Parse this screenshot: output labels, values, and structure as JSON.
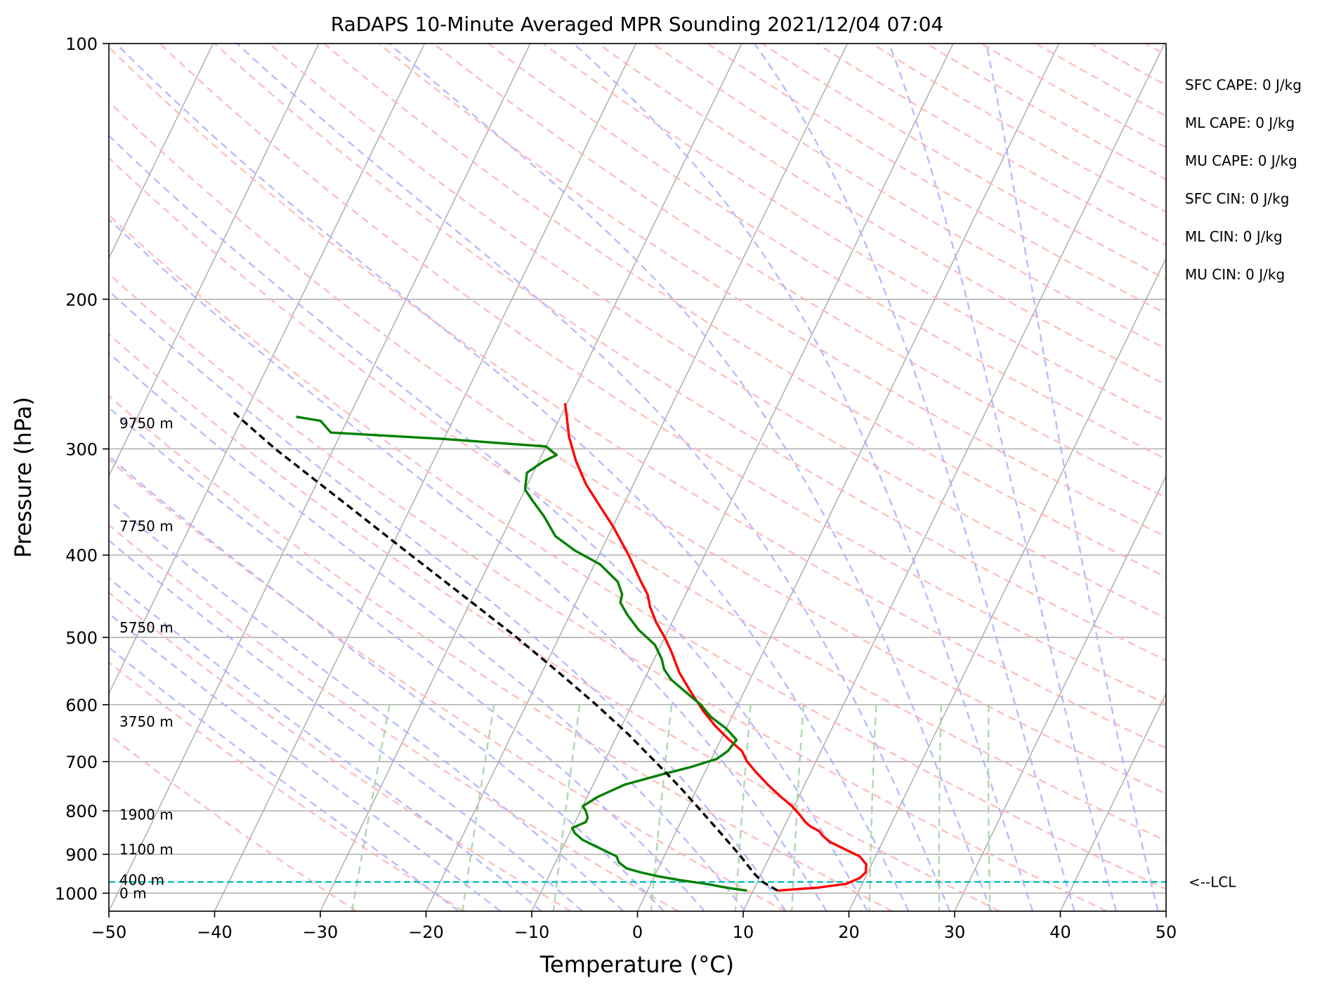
{
  "chart_data": {
    "type": "line",
    "title": "RaDAPS 10-Minute Averaged MPR Sounding 2021/12/04 07:04",
    "xlabel": "Temperature (°C)",
    "ylabel": "Pressure (hPa)",
    "xlim": [
      -50,
      50
    ],
    "ylim": [
      1050,
      100
    ],
    "y_log_scale": true,
    "skew_t": true,
    "x_ticks": [
      -50,
      -40,
      -30,
      -20,
      -10,
      0,
      10,
      20,
      30,
      40,
      50
    ],
    "x_tick_labels": [
      "−50",
      "−40",
      "−30",
      "−20",
      "−10",
      "0",
      "10",
      "20",
      "30",
      "40",
      "50"
    ],
    "y_ticks": [
      100,
      200,
      300,
      400,
      500,
      600,
      700,
      800,
      900,
      1000
    ],
    "y_tick_labels": [
      "100",
      "200",
      "300",
      "400",
      "500",
      "600",
      "700",
      "800",
      "900",
      "1000"
    ],
    "grid": true,
    "colors": {
      "temperature": "#ff0000",
      "dewpoint": "#008000",
      "parcel": "#000000",
      "lcl": "#00bfbf",
      "dry_adiabat": "#ffb3b3",
      "moist_adiabat": "#b3b3ff",
      "mixing_ratio": "#a6d4a6",
      "isotherm": "#a8a8a8"
    },
    "series": [
      {
        "key": "temperature",
        "points": [
          [
            993,
            12.3
          ],
          [
            985,
            16
          ],
          [
            975,
            18.5
          ],
          [
            960,
            19.5
          ],
          [
            945,
            19.8
          ],
          [
            925,
            19.5
          ],
          [
            905,
            18.5
          ],
          [
            890,
            17
          ],
          [
            870,
            15
          ],
          [
            855,
            14
          ],
          [
            845,
            13.5
          ],
          [
            835,
            12.5
          ],
          [
            825,
            11.8
          ],
          [
            810,
            11
          ],
          [
            790,
            9.8
          ],
          [
            770,
            8.3
          ],
          [
            745,
            6.5
          ],
          [
            720,
            4.8
          ],
          [
            700,
            3.5
          ],
          [
            680,
            2.5
          ],
          [
            660,
            0.8
          ],
          [
            635,
            -1.2
          ],
          [
            610,
            -3
          ],
          [
            580,
            -5
          ],
          [
            550,
            -7
          ],
          [
            520,
            -8.7
          ],
          [
            500,
            -10
          ],
          [
            480,
            -11.5
          ],
          [
            460,
            -12.8
          ],
          [
            445,
            -13.6
          ],
          [
            430,
            -14.8
          ],
          [
            400,
            -17.2
          ],
          [
            370,
            -20
          ],
          [
            350,
            -22.2
          ],
          [
            330,
            -24.5
          ],
          [
            310,
            -26.5
          ],
          [
            290,
            -28.3
          ],
          [
            275,
            -29.4
          ],
          [
            265,
            -30.2
          ]
        ]
      },
      {
        "key": "dewpoint",
        "points": [
          [
            993,
            9.4
          ],
          [
            985,
            7.3
          ],
          [
            975,
            5.2
          ],
          [
            965,
            2.5
          ],
          [
            955,
            0.3
          ],
          [
            945,
            -1.5
          ],
          [
            935,
            -3
          ],
          [
            920,
            -4
          ],
          [
            905,
            -4.5
          ],
          [
            895,
            -5.5
          ],
          [
            880,
            -7
          ],
          [
            865,
            -8.5
          ],
          [
            850,
            -9.5
          ],
          [
            838,
            -10
          ],
          [
            825,
            -9
          ],
          [
            815,
            -9
          ],
          [
            800,
            -9.5
          ],
          [
            790,
            -10
          ],
          [
            770,
            -9
          ],
          [
            745,
            -7
          ],
          [
            725,
            -4
          ],
          [
            710,
            -1.5
          ],
          [
            695,
            0.5
          ],
          [
            680,
            1.2
          ],
          [
            660,
            1.5
          ],
          [
            640,
            0
          ],
          [
            620,
            -2
          ],
          [
            600,
            -3.5
          ],
          [
            580,
            -5.5
          ],
          [
            560,
            -7.5
          ],
          [
            545,
            -8.6
          ],
          [
            530,
            -9.3
          ],
          [
            510,
            -10.6
          ],
          [
            490,
            -12.8
          ],
          [
            470,
            -14.6
          ],
          [
            455,
            -15.8
          ],
          [
            445,
            -16
          ],
          [
            430,
            -17
          ],
          [
            410,
            -19.5
          ],
          [
            395,
            -22.5
          ],
          [
            380,
            -25
          ],
          [
            360,
            -27
          ],
          [
            345,
            -28.8
          ],
          [
            335,
            -30
          ],
          [
            320,
            -30.6
          ],
          [
            310,
            -29.5
          ],
          [
            305,
            -28.6
          ],
          [
            298,
            -30
          ],
          [
            292,
            -40
          ],
          [
            287,
            -51
          ],
          [
            278,
            -52.5
          ],
          [
            275,
            -55
          ]
        ]
      },
      {
        "key": "parcel",
        "points": [
          [
            993,
            12.3
          ],
          [
            970,
            10.5
          ],
          [
            950,
            9.4
          ],
          [
            900,
            7
          ],
          [
            850,
            4.3
          ],
          [
            800,
            1.4
          ],
          [
            750,
            -1.7
          ],
          [
            700,
            -5.2
          ],
          [
            650,
            -9
          ],
          [
            600,
            -13.4
          ],
          [
            550,
            -18.4
          ],
          [
            500,
            -24
          ],
          [
            450,
            -30.5
          ],
          [
            400,
            -37.8
          ],
          [
            350,
            -46
          ],
          [
            300,
            -55.5
          ],
          [
            270,
            -61.5
          ]
        ]
      }
    ],
    "lcl_pressure": 970,
    "lcl_label": "<--LCL",
    "height_labels": [
      {
        "p": 1000,
        "text": "0 m"
      },
      {
        "p": 965,
        "text": "400 m"
      },
      {
        "p": 888,
        "text": "1100 m"
      },
      {
        "p": 808,
        "text": "1900 m"
      },
      {
        "p": 628,
        "text": "3750 m"
      },
      {
        "p": 487,
        "text": "5750 m"
      },
      {
        "p": 370,
        "text": "7750 m"
      },
      {
        "p": 280,
        "text": "9750 m"
      }
    ],
    "indices": [
      "SFC CAPE: 0 J/kg",
      "ML CAPE: 0 J/kg",
      "MU CAPE: 0 J/kg",
      "SFC CIN: 0 J/kg",
      "ML CIN: 0 J/kg",
      "MU CIN: 0 J/kg"
    ]
  }
}
